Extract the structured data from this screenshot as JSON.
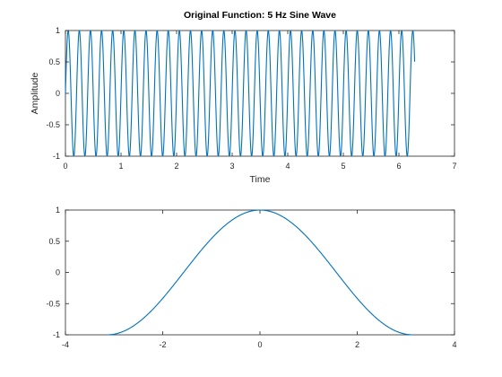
{
  "chart_data": [
    {
      "type": "line",
      "title": "Original Function: 5 Hz Sine Wave",
      "xlabel": "Time",
      "ylabel": "Amplitude",
      "xlim": [
        0,
        7
      ],
      "ylim": [
        -1,
        1
      ],
      "x_ticks": [
        "0",
        "1",
        "2",
        "3",
        "4",
        "5",
        "6",
        "7"
      ],
      "y_ticks": [
        "1",
        "0.5",
        "0",
        "-0.5",
        "-1"
      ],
      "grid": false,
      "series": [
        {
          "function": "sin(2*pi*5*t)",
          "x_range": [
            0,
            6.2832
          ],
          "color": "#0072bd"
        }
      ]
    },
    {
      "type": "line",
      "title": "",
      "xlabel": "",
      "ylabel": "",
      "xlim": [
        -4,
        4
      ],
      "ylim": [
        -1,
        1
      ],
      "x_ticks": [
        "-4",
        "-2",
        "0",
        "2",
        "4"
      ],
      "y_ticks": [
        "1",
        "0.5",
        "0",
        "-0.5",
        "-1"
      ],
      "grid": false,
      "series": [
        {
          "function": "cos(x)",
          "x_range": [
            -3.1416,
            3.1416
          ],
          "color": "#0072bd"
        }
      ]
    }
  ]
}
